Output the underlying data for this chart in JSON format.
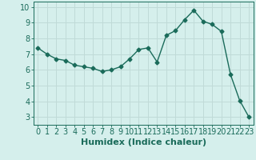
{
  "x": [
    0,
    1,
    2,
    3,
    4,
    5,
    6,
    7,
    8,
    9,
    10,
    11,
    12,
    13,
    14,
    15,
    16,
    17,
    18,
    19,
    20,
    21,
    22,
    23
  ],
  "y": [
    7.4,
    7.0,
    6.7,
    6.6,
    6.3,
    6.2,
    6.1,
    5.9,
    6.0,
    6.2,
    6.7,
    7.3,
    7.4,
    6.5,
    8.2,
    8.5,
    9.2,
    9.8,
    9.1,
    8.9,
    8.45,
    5.7,
    4.05,
    3.0
  ],
  "line_color": "#1a6b5a",
  "marker": "D",
  "marker_size": 2.5,
  "bg_color": "#d5efec",
  "grid_color": "#c0dbd8",
  "xlabel": "Humidex (Indice chaleur)",
  "xlim": [
    -0.5,
    23.5
  ],
  "ylim": [
    2.5,
    10.35
  ],
  "yticks": [
    3,
    4,
    5,
    6,
    7,
    8,
    9,
    10
  ],
  "xticks": [
    0,
    1,
    2,
    3,
    4,
    5,
    6,
    7,
    8,
    9,
    10,
    11,
    12,
    13,
    14,
    15,
    16,
    17,
    18,
    19,
    20,
    21,
    22,
    23
  ],
  "tick_color": "#1a6b5a",
  "label_color": "#1a6b5a",
  "xlabel_fontsize": 8,
  "tick_fontsize": 7,
  "linewidth": 1.0
}
